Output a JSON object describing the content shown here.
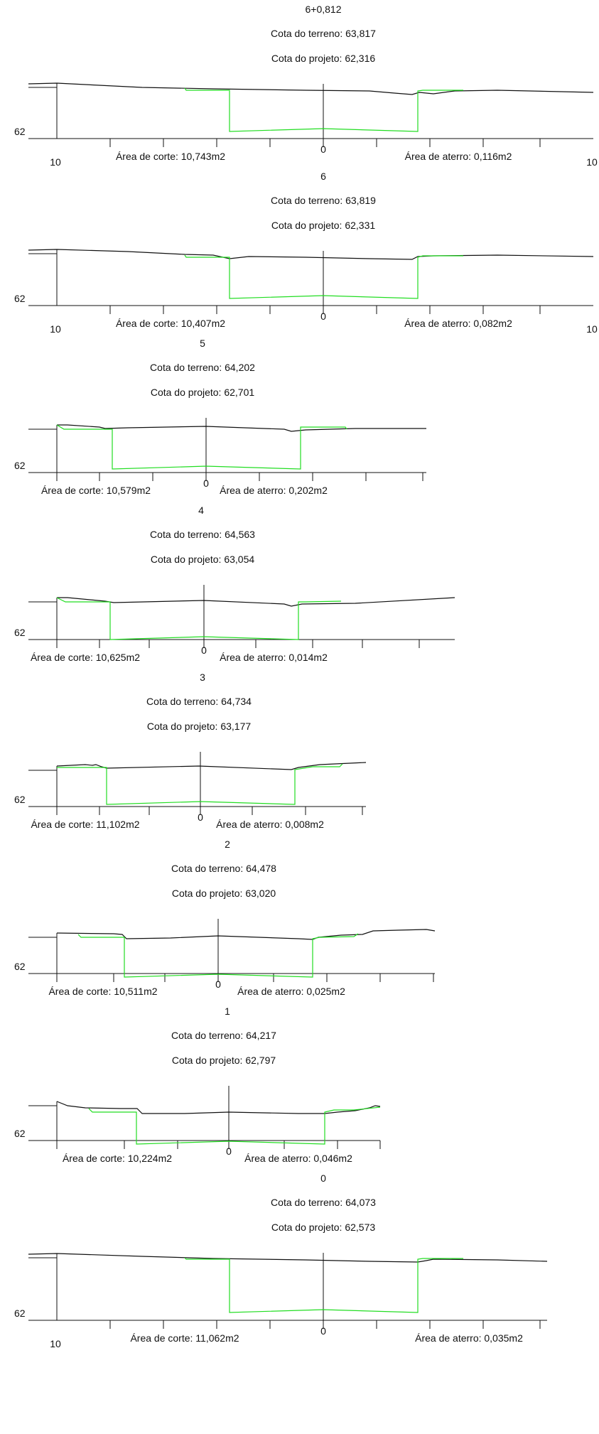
{
  "colors": {
    "terrain": "#111111",
    "design": "#22dd22",
    "axis": "#111111",
    "background": "#ffffff"
  },
  "sections": [
    {
      "station": "6+0,812",
      "terrain_label": "Cota do terreno: 63,817",
      "design_label": "Cota do projeto: 62,316",
      "elev_label": "62",
      "center_label": "0",
      "cut_label": "Área de corte: 10,743m2",
      "fill_label": "Área de aterro: 0,116m2",
      "left_offset_label": "10",
      "right_offset_label": "10"
    },
    {
      "station": "6",
      "terrain_label": "Cota do terreno: 63,819",
      "design_label": "Cota do projeto: 62,331",
      "elev_label": "62",
      "center_label": "0",
      "cut_label": "Área de corte: 10,407m2",
      "fill_label": "Área de aterro: 0,082m2",
      "left_offset_label": "10",
      "right_offset_label": "10"
    },
    {
      "station": "5",
      "terrain_label": "Cota do terreno: 64,202",
      "design_label": "Cota do projeto: 62,701",
      "elev_label": "62",
      "center_label": "0",
      "cut_label": "Área de corte: 10,579m2",
      "fill_label": "Área de aterro: 0,202m2",
      "left_offset_label": "",
      "right_offset_label": ""
    },
    {
      "station": "4",
      "terrain_label": "Cota do terreno: 64,563",
      "design_label": "Cota do projeto: 63,054",
      "elev_label": "62",
      "center_label": "0",
      "cut_label": "Área de corte: 10,625m2",
      "fill_label": "Área de aterro: 0,014m2",
      "left_offset_label": "",
      "right_offset_label": ""
    },
    {
      "station": "3",
      "terrain_label": "Cota do terreno: 64,734",
      "design_label": "Cota do projeto: 63,177",
      "elev_label": "62",
      "center_label": "0",
      "cut_label": "Área de corte: 11,102m2",
      "fill_label": "Área de aterro: 0,008m2",
      "left_offset_label": "",
      "right_offset_label": ""
    },
    {
      "station": "2",
      "terrain_label": "Cota do terreno: 64,478",
      "design_label": "Cota do projeto: 63,020",
      "elev_label": "62",
      "center_label": "0",
      "cut_label": "Área de corte: 10,511m2",
      "fill_label": "Área de aterro: 0,025m2",
      "left_offset_label": "",
      "right_offset_label": ""
    },
    {
      "station": "1",
      "terrain_label": "Cota do terreno: 64,217",
      "design_label": "Cota do projeto: 62,797",
      "elev_label": "62",
      "center_label": "0",
      "cut_label": "Área de corte: 10,224m2",
      "fill_label": "Área de aterro: 0,046m2",
      "left_offset_label": "",
      "right_offset_label": ""
    },
    {
      "station": "0",
      "terrain_label": "Cota do terreno: 64,073",
      "design_label": "Cota do projeto: 62,573",
      "elev_label": "62",
      "center_label": "0",
      "cut_label": "Área de corte: 11,062m2",
      "fill_label": "Área de aterro: 0,035m2",
      "left_offset_label": "10",
      "right_offset_label": ""
    }
  ]
}
